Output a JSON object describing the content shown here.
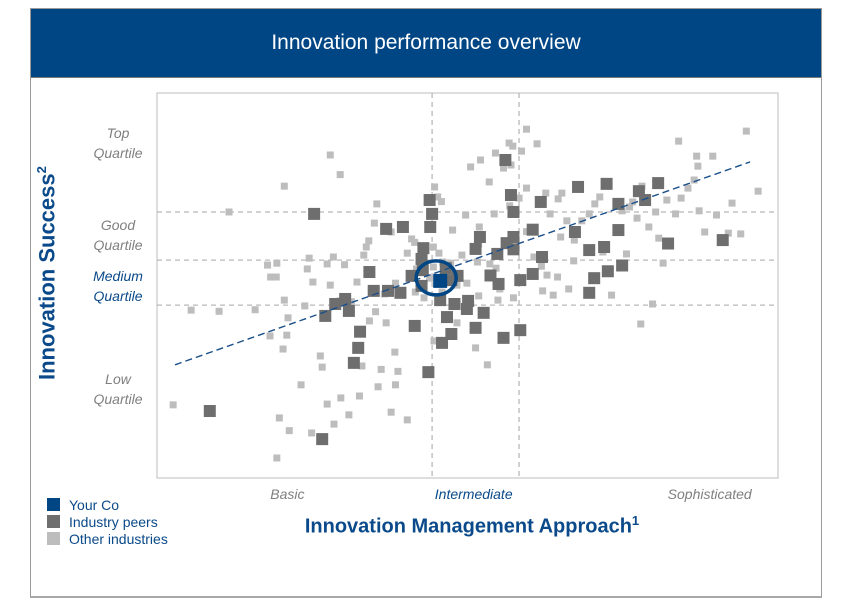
{
  "header": {
    "title": "Innovation performance overview"
  },
  "colors": {
    "banner": "#004584",
    "your_co": "#004584",
    "industry_peers": "#6e6e6e",
    "other_industries": "#bdbdbd",
    "trend": "#1a4f8a",
    "grid": "#b8b8b8",
    "axis_text": "#0a4a8a",
    "quartile_text": "#7f7f7f"
  },
  "legend": {
    "items": [
      {
        "label": "Your Co",
        "series": "your_co"
      },
      {
        "label": "Industry peers",
        "series": "industry_peers"
      },
      {
        "label": "Other industries",
        "series": "other_industries"
      }
    ]
  },
  "chart_data": {
    "type": "scatter",
    "title": "Innovation performance overview",
    "xlabel": "Innovation Management Approach",
    "xlabel_footnote": "1",
    "ylabel": "Innovation Success",
    "ylabel_footnote": "2",
    "xlim": [
      0,
      100
    ],
    "ylim": [
      0,
      100
    ],
    "units_note": "Axes are unlabeled numerically; values are normalized 0-100 estimates of position within the plot area.",
    "x_categories": [
      {
        "label": "Basic",
        "x": 21,
        "highlight": false
      },
      {
        "label": "Intermediate",
        "x": 51,
        "highlight": true
      },
      {
        "label": "Sophisticated",
        "x": 89,
        "highlight": false
      }
    ],
    "y_categories": [
      {
        "label_line1": "Top",
        "label_line2": "Quartile",
        "y": 87,
        "highlight": false
      },
      {
        "label_line1": "Good",
        "label_line2": "Quartile",
        "y": 63,
        "highlight": false
      },
      {
        "label_line1": "Medium",
        "label_line2": "Quartile",
        "y": 50,
        "highlight": true
      },
      {
        "label_line1": "Low",
        "label_line2": "Quartile",
        "y": 23,
        "highlight": false
      }
    ],
    "vertical_gridlines_x": [
      44.3,
      58.3
    ],
    "horizontal_gridlines_y": [
      69.1,
      56.6,
      44.9
    ],
    "grid": "dashed",
    "legend_position": "bottom-left",
    "trendline": {
      "x": [
        2.9,
        95.5
      ],
      "y": [
        29.4,
        82.1
      ],
      "style": "dashed"
    },
    "highlight_circle": {
      "series": "your_co"
    },
    "series": [
      {
        "name": "Your Co",
        "key": "your_co",
        "points": [
          {
            "x": 45.6,
            "y": 51.2
          }
        ]
      },
      {
        "name": "Industry peers",
        "key": "industry_peers",
        "points": [
          {
            "x": 25.3,
            "y": 68.6
          },
          {
            "x": 36.9,
            "y": 64.7
          },
          {
            "x": 39.6,
            "y": 65.2
          },
          {
            "x": 43.9,
            "y": 72.2
          },
          {
            "x": 44.3,
            "y": 68.6
          },
          {
            "x": 44.0,
            "y": 65.2
          },
          {
            "x": 42.9,
            "y": 59.7
          },
          {
            "x": 42.6,
            "y": 56.9
          },
          {
            "x": 42.8,
            "y": 54.0
          },
          {
            "x": 41.0,
            "y": 52.5
          },
          {
            "x": 39.2,
            "y": 48.1
          },
          {
            "x": 37.2,
            "y": 48.6
          },
          {
            "x": 34.2,
            "y": 53.5
          },
          {
            "x": 30.3,
            "y": 46.5
          },
          {
            "x": 28.7,
            "y": 45.2
          },
          {
            "x": 30.9,
            "y": 43.4
          },
          {
            "x": 34.9,
            "y": 48.6
          },
          {
            "x": 42.6,
            "y": 49.9
          },
          {
            "x": 46.5,
            "y": 54.5
          },
          {
            "x": 47.4,
            "y": 51.4
          },
          {
            "x": 45.6,
            "y": 46.2
          },
          {
            "x": 47.9,
            "y": 45.2
          },
          {
            "x": 50.1,
            "y": 46.0
          },
          {
            "x": 48.4,
            "y": 52.5
          },
          {
            "x": 51.3,
            "y": 59.5
          },
          {
            "x": 56.3,
            "y": 61.0
          },
          {
            "x": 52.0,
            "y": 62.6
          },
          {
            "x": 54.8,
            "y": 58.2
          },
          {
            "x": 57.4,
            "y": 59.4
          },
          {
            "x": 57.4,
            "y": 62.6
          },
          {
            "x": 57.4,
            "y": 69.1
          },
          {
            "x": 57.0,
            "y": 73.5
          },
          {
            "x": 56.1,
            "y": 82.6
          },
          {
            "x": 60.5,
            "y": 53.0
          },
          {
            "x": 58.5,
            "y": 51.4
          },
          {
            "x": 55.0,
            "y": 50.4
          },
          {
            "x": 53.7,
            "y": 52.6
          },
          {
            "x": 49.9,
            "y": 43.9
          },
          {
            "x": 52.6,
            "y": 42.9
          },
          {
            "x": 55.8,
            "y": 36.4
          },
          {
            "x": 58.5,
            "y": 38.4
          },
          {
            "x": 51.3,
            "y": 39.0
          },
          {
            "x": 46.7,
            "y": 41.8
          },
          {
            "x": 47.4,
            "y": 37.4
          },
          {
            "x": 41.5,
            "y": 39.5
          },
          {
            "x": 32.7,
            "y": 38.0
          },
          {
            "x": 32.4,
            "y": 33.8
          },
          {
            "x": 31.7,
            "y": 29.9
          },
          {
            "x": 27.1,
            "y": 42.1
          },
          {
            "x": 43.7,
            "y": 27.5
          },
          {
            "x": 45.9,
            "y": 35.1
          },
          {
            "x": 61.8,
            "y": 71.7
          },
          {
            "x": 67.8,
            "y": 75.6
          },
          {
            "x": 67.3,
            "y": 63.9
          },
          {
            "x": 69.6,
            "y": 59.2
          },
          {
            "x": 72.0,
            "y": 60.0
          },
          {
            "x": 70.4,
            "y": 51.9
          },
          {
            "x": 72.6,
            "y": 53.7
          },
          {
            "x": 74.9,
            "y": 55.2
          },
          {
            "x": 77.6,
            "y": 74.5
          },
          {
            "x": 78.6,
            "y": 72.2
          },
          {
            "x": 74.3,
            "y": 71.2
          },
          {
            "x": 72.4,
            "y": 76.4
          },
          {
            "x": 69.6,
            "y": 48.1
          },
          {
            "x": 62.0,
            "y": 57.4
          },
          {
            "x": 74.3,
            "y": 64.4
          },
          {
            "x": 80.7,
            "y": 76.6
          },
          {
            "x": 82.3,
            "y": 60.9
          },
          {
            "x": 91.1,
            "y": 61.8
          },
          {
            "x": 60.5,
            "y": 64.5
          },
          {
            "x": 8.5,
            "y": 17.4
          },
          {
            "x": 26.6,
            "y": 10.1
          }
        ]
      },
      {
        "name": "Other industries",
        "key": "other_industries",
        "points": [
          {
            "x": 2.6,
            "y": 19.0
          },
          {
            "x": 5.5,
            "y": 43.6
          },
          {
            "x": 10.0,
            "y": 43.3
          },
          {
            "x": 11.6,
            "y": 69.1
          },
          {
            "x": 20.5,
            "y": 46.2
          },
          {
            "x": 18.3,
            "y": 52.2
          },
          {
            "x": 15.8,
            "y": 43.7
          },
          {
            "x": 20.9,
            "y": 37.1
          },
          {
            "x": 18.2,
            "y": 36.9
          },
          {
            "x": 20.3,
            "y": 33.5
          },
          {
            "x": 19.7,
            "y": 15.6
          },
          {
            "x": 21.3,
            "y": 12.3
          },
          {
            "x": 19.3,
            "y": 5.2
          },
          {
            "x": 24.2,
            "y": 54.3
          },
          {
            "x": 25.1,
            "y": 50.9
          },
          {
            "x": 27.4,
            "y": 55.6
          },
          {
            "x": 27.9,
            "y": 50.1
          },
          {
            "x": 29.5,
            "y": 46.0
          },
          {
            "x": 34.2,
            "y": 40.8
          },
          {
            "x": 26.3,
            "y": 31.7
          },
          {
            "x": 26.6,
            "y": 28.8
          },
          {
            "x": 23.2,
            "y": 24.2
          },
          {
            "x": 23.8,
            "y": 44.7
          },
          {
            "x": 27.4,
            "y": 19.2
          },
          {
            "x": 24.9,
            "y": 11.7
          },
          {
            "x": 28.5,
            "y": 14.0
          },
          {
            "x": 30.9,
            "y": 16.4
          },
          {
            "x": 35.6,
            "y": 23.7
          },
          {
            "x": 38.4,
            "y": 24.2
          },
          {
            "x": 36.1,
            "y": 28.2
          },
          {
            "x": 32.6,
            "y": 21.3
          },
          {
            "x": 37.7,
            "y": 17.1
          },
          {
            "x": 40.3,
            "y": 15.1
          },
          {
            "x": 36.9,
            "y": 40.3
          },
          {
            "x": 38.3,
            "y": 32.7
          },
          {
            "x": 38.8,
            "y": 27.7
          },
          {
            "x": 33.0,
            "y": 29.1
          },
          {
            "x": 29.6,
            "y": 20.8
          },
          {
            "x": 26.9,
            "y": 9.6
          },
          {
            "x": 21.1,
            "y": 41.6
          },
          {
            "x": 17.8,
            "y": 55.3
          },
          {
            "x": 19.2,
            "y": 52.2
          },
          {
            "x": 19.3,
            "y": 55.8
          },
          {
            "x": 28.4,
            "y": 57.4
          },
          {
            "x": 24.5,
            "y": 57.1
          },
          {
            "x": 33.3,
            "y": 57.9
          },
          {
            "x": 34.1,
            "y": 61.6
          },
          {
            "x": 30.2,
            "y": 55.4
          },
          {
            "x": 32.2,
            "y": 50.9
          },
          {
            "x": 38.4,
            "y": 50.6
          },
          {
            "x": 34.5,
            "y": 48.6
          },
          {
            "x": 36.6,
            "y": 47.8
          },
          {
            "x": 31.3,
            "y": 45.8
          },
          {
            "x": 35.2,
            "y": 43.2
          },
          {
            "x": 27.9,
            "y": 83.9
          },
          {
            "x": 29.5,
            "y": 78.8
          },
          {
            "x": 20.5,
            "y": 75.8
          },
          {
            "x": 33.7,
            "y": 60.0
          },
          {
            "x": 35.0,
            "y": 66.2
          },
          {
            "x": 35.4,
            "y": 71.2
          },
          {
            "x": 37.7,
            "y": 63.9
          },
          {
            "x": 40.3,
            "y": 58.4
          },
          {
            "x": 41.0,
            "y": 62.1
          },
          {
            "x": 44.7,
            "y": 75.6
          },
          {
            "x": 45.2,
            "y": 73.0
          },
          {
            "x": 45.8,
            "y": 71.8
          },
          {
            "x": 41.5,
            "y": 61.2
          },
          {
            "x": 41.8,
            "y": 54.3
          },
          {
            "x": 44.5,
            "y": 60.0
          },
          {
            "x": 45.4,
            "y": 58.4
          },
          {
            "x": 46.0,
            "y": 56.1
          },
          {
            "x": 44.5,
            "y": 54.8
          },
          {
            "x": 43.9,
            "y": 51.9
          },
          {
            "x": 43.0,
            "y": 50.1
          },
          {
            "x": 41.6,
            "y": 48.3
          },
          {
            "x": 43.0,
            "y": 46.8
          },
          {
            "x": 45.9,
            "y": 48.3
          },
          {
            "x": 48.3,
            "y": 50.1
          },
          {
            "x": 49.9,
            "y": 50.6
          },
          {
            "x": 47.3,
            "y": 55.8
          },
          {
            "x": 49.1,
            "y": 57.9
          },
          {
            "x": 51.6,
            "y": 56.1
          },
          {
            "x": 53.6,
            "y": 55.6
          },
          {
            "x": 54.6,
            "y": 54.5
          },
          {
            "x": 55.2,
            "y": 49.1
          },
          {
            "x": 51.8,
            "y": 47.3
          },
          {
            "x": 54.9,
            "y": 46.2
          },
          {
            "x": 57.4,
            "y": 46.8
          },
          {
            "x": 48.3,
            "y": 40.3
          },
          {
            "x": 51.3,
            "y": 33.8
          },
          {
            "x": 44.6,
            "y": 35.6
          },
          {
            "x": 53.2,
            "y": 29.4
          },
          {
            "x": 51.8,
            "y": 60.8
          },
          {
            "x": 47.6,
            "y": 64.4
          },
          {
            "x": 51.9,
            "y": 65.2
          },
          {
            "x": 49.7,
            "y": 68.3
          },
          {
            "x": 54.3,
            "y": 68.6
          },
          {
            "x": 56.8,
            "y": 70.7
          },
          {
            "x": 58.3,
            "y": 72.7
          },
          {
            "x": 59.5,
            "y": 75.3
          },
          {
            "x": 53.5,
            "y": 76.9
          },
          {
            "x": 52.1,
            "y": 82.6
          },
          {
            "x": 55.8,
            "y": 80.5
          },
          {
            "x": 57.0,
            "y": 81.3
          },
          {
            "x": 56.7,
            "y": 87.0
          },
          {
            "x": 54.5,
            "y": 84.4
          },
          {
            "x": 57.3,
            "y": 86.2
          },
          {
            "x": 58.7,
            "y": 84.9
          },
          {
            "x": 59.5,
            "y": 90.6
          },
          {
            "x": 50.5,
            "y": 80.8
          },
          {
            "x": 61.2,
            "y": 86.8
          },
          {
            "x": 62.6,
            "y": 74.0
          },
          {
            "x": 65.2,
            "y": 74.0
          },
          {
            "x": 64.6,
            "y": 72.5
          },
          {
            "x": 63.3,
            "y": 68.6
          },
          {
            "x": 66.0,
            "y": 66.8
          },
          {
            "x": 65.0,
            "y": 62.6
          },
          {
            "x": 60.7,
            "y": 57.4
          },
          {
            "x": 61.9,
            "y": 55.0
          },
          {
            "x": 62.8,
            "y": 52.7
          },
          {
            "x": 64.5,
            "y": 52.2
          },
          {
            "x": 66.3,
            "y": 49.1
          },
          {
            "x": 62.1,
            "y": 48.6
          },
          {
            "x": 63.8,
            "y": 47.5
          },
          {
            "x": 67.1,
            "y": 56.4
          },
          {
            "x": 67.2,
            "y": 61.8
          },
          {
            "x": 68.4,
            "y": 66.8
          },
          {
            "x": 69.6,
            "y": 68.6
          },
          {
            "x": 70.5,
            "y": 71.2
          },
          {
            "x": 71.3,
            "y": 73.0
          },
          {
            "x": 74.9,
            "y": 69.4
          },
          {
            "x": 76.1,
            "y": 70.4
          },
          {
            "x": 77.3,
            "y": 67.5
          },
          {
            "x": 76.6,
            "y": 71.7
          },
          {
            "x": 79.2,
            "y": 65.2
          },
          {
            "x": 80.8,
            "y": 62.3
          },
          {
            "x": 80.3,
            "y": 69.1
          },
          {
            "x": 82.1,
            "y": 72.2
          },
          {
            "x": 83.5,
            "y": 68.6
          },
          {
            "x": 84.4,
            "y": 72.7
          },
          {
            "x": 85.5,
            "y": 75.3
          },
          {
            "x": 86.5,
            "y": 77.4
          },
          {
            "x": 86.9,
            "y": 83.6
          },
          {
            "x": 84.0,
            "y": 87.5
          },
          {
            "x": 87.1,
            "y": 81.0
          },
          {
            "x": 89.5,
            "y": 83.6
          },
          {
            "x": 92.6,
            "y": 71.4
          },
          {
            "x": 94.9,
            "y": 90.1
          },
          {
            "x": 96.8,
            "y": 74.5
          },
          {
            "x": 90.1,
            "y": 68.3
          },
          {
            "x": 87.3,
            "y": 69.4
          },
          {
            "x": 88.2,
            "y": 63.9
          },
          {
            "x": 92.0,
            "y": 63.6
          },
          {
            "x": 94.0,
            "y": 63.4
          },
          {
            "x": 77.9,
            "y": 40.0
          },
          {
            "x": 79.8,
            "y": 45.2
          },
          {
            "x": 81.5,
            "y": 55.8
          },
          {
            "x": 75.6,
            "y": 58.2
          },
          {
            "x": 71.8,
            "y": 58.7
          },
          {
            "x": 73.2,
            "y": 47.5
          },
          {
            "x": 78.1,
            "y": 75.8
          },
          {
            "x": 59.5,
            "y": 64.0
          }
        ]
      }
    ]
  }
}
